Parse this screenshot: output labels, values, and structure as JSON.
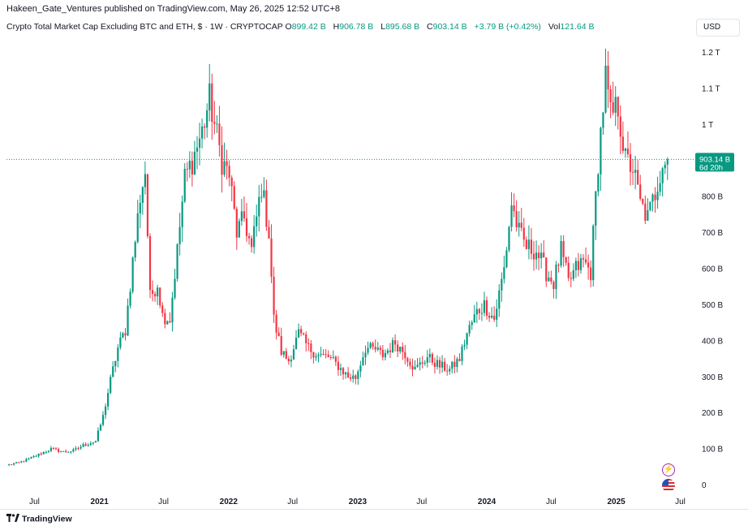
{
  "header": {
    "publisher": "Hakeen_Gate_Ventures published on TradingView.com, May 26, 2025 12:52 UTC+8"
  },
  "legend": {
    "title": "Crypto Total Market Cap Excluding BTC and ETH, $ · 1W · CRYPTOCAP",
    "o_label": "O",
    "o_value": "899.42 B",
    "h_label": "H",
    "h_value": "906.78 B",
    "l_label": "L",
    "l_value": "895.68 B",
    "c_label": "C",
    "c_value": "903.14 B",
    "change": "+3.79 B (+0.42%)",
    "vol_label": "Vol",
    "vol_value": "121.64 B"
  },
  "currency": "USD",
  "price_tag": {
    "price": "903.14 B",
    "countdown": "6d 20h"
  },
  "footer": {
    "brand": "TradingView"
  },
  "icons": [
    "lightning-icon",
    "us-flag-icon",
    "tradingview-logo-icon"
  ],
  "colors": {
    "up": "#089981",
    "down": "#f23645",
    "price_line": "#089981"
  },
  "chart_data": {
    "type": "candlestick",
    "interval": "1W",
    "y_unit": "B USD",
    "ylim": [
      -55,
      1255
    ],
    "y_ticks": [
      {
        "v": 1200,
        "label": "1.2 T"
      },
      {
        "v": 1100,
        "label": "1.1 T"
      },
      {
        "v": 1000,
        "label": "1 T"
      },
      {
        "v": 800,
        "label": "800 B"
      },
      {
        "v": 700,
        "label": "700 B"
      },
      {
        "v": 600,
        "label": "600 B"
      },
      {
        "v": 500,
        "label": "500 B"
      },
      {
        "v": 400,
        "label": "400 B"
      },
      {
        "v": 300,
        "label": "300 B"
      },
      {
        "v": 200,
        "label": "200 B"
      },
      {
        "v": 100,
        "label": "100 B"
      },
      {
        "v": 0,
        "label": "0"
      }
    ],
    "x_ticks": [
      {
        "date": "2020-07-01",
        "label": "Jul"
      },
      {
        "date": "2021-01-01",
        "label": "2021"
      },
      {
        "date": "2021-07-01",
        "label": "Jul"
      },
      {
        "date": "2022-01-01",
        "label": "2022"
      },
      {
        "date": "2022-07-01",
        "label": "Jul"
      },
      {
        "date": "2023-01-01",
        "label": "2023"
      },
      {
        "date": "2023-07-01",
        "label": "Jul"
      },
      {
        "date": "2024-01-01",
        "label": "2024"
      },
      {
        "date": "2024-07-01",
        "label": "Jul"
      },
      {
        "date": "2025-01-01",
        "label": "2025"
      },
      {
        "date": "2025-07-01",
        "label": "Jul"
      }
    ],
    "x_range": [
      "2020-04-13",
      "2025-08-01"
    ],
    "last_close": 903.14,
    "close_anchors": [
      [
        "2020-04-13",
        55
      ],
      [
        "2020-05-18",
        62
      ],
      [
        "2020-06-15",
        72
      ],
      [
        "2020-07-20",
        88
      ],
      [
        "2020-08-17",
        100
      ],
      [
        "2020-09-21",
        92
      ],
      [
        "2020-10-19",
        95
      ],
      [
        "2020-11-16",
        110
      ],
      [
        "2020-12-21",
        122
      ],
      [
        "2021-01-11",
        190
      ],
      [
        "2021-02-01",
        290
      ],
      [
        "2021-02-22",
        380
      ],
      [
        "2021-03-15",
        430
      ],
      [
        "2021-04-05",
        620
      ],
      [
        "2021-04-26",
        800
      ],
      [
        "2021-05-10",
        870
      ],
      [
        "2021-05-24",
        520
      ],
      [
        "2021-06-14",
        560
      ],
      [
        "2021-06-28",
        470
      ],
      [
        "2021-07-19",
        460
      ],
      [
        "2021-08-09",
        650
      ],
      [
        "2021-08-30",
        850
      ],
      [
        "2021-09-20",
        900
      ],
      [
        "2021-10-18",
        980
      ],
      [
        "2021-11-08",
        1070
      ],
      [
        "2021-11-22",
        1000
      ],
      [
        "2021-12-13",
        900
      ],
      [
        "2022-01-03",
        860
      ],
      [
        "2022-01-24",
        700
      ],
      [
        "2022-02-14",
        740
      ],
      [
        "2022-03-07",
        650
      ],
      [
        "2022-04-04",
        830
      ],
      [
        "2022-04-25",
        700
      ],
      [
        "2022-05-09",
        460
      ],
      [
        "2022-05-30",
        370
      ],
      [
        "2022-06-20",
        345
      ],
      [
        "2022-07-18",
        420
      ],
      [
        "2022-08-15",
        380
      ],
      [
        "2022-09-12",
        360
      ],
      [
        "2022-10-10",
        355
      ],
      [
        "2022-11-07",
        330
      ],
      [
        "2022-12-05",
        300
      ],
      [
        "2022-12-26",
        298
      ],
      [
        "2023-01-23",
        380
      ],
      [
        "2023-02-20",
        375
      ],
      [
        "2023-03-13",
        360
      ],
      [
        "2023-04-17",
        395
      ],
      [
        "2023-05-15",
        365
      ],
      [
        "2023-06-12",
        320
      ],
      [
        "2023-07-17",
        355
      ],
      [
        "2023-08-21",
        330
      ],
      [
        "2023-09-18",
        320
      ],
      [
        "2023-10-16",
        350
      ],
      [
        "2023-11-06",
        420
      ],
      [
        "2023-12-04",
        480
      ],
      [
        "2023-12-25",
        500
      ],
      [
        "2024-01-22",
        460
      ],
      [
        "2024-02-19",
        600
      ],
      [
        "2024-03-11",
        780
      ],
      [
        "2024-04-01",
        700
      ],
      [
        "2024-04-22",
        660
      ],
      [
        "2024-05-20",
        650
      ],
      [
        "2024-06-17",
        590
      ],
      [
        "2024-07-08",
        560
      ],
      [
        "2024-07-29",
        650
      ],
      [
        "2024-08-19",
        560
      ],
      [
        "2024-09-09",
        600
      ],
      [
        "2024-09-30",
        620
      ],
      [
        "2024-10-21",
        590
      ],
      [
        "2024-11-11",
        900
      ],
      [
        "2024-12-02",
        1130
      ],
      [
        "2024-12-16",
        1020
      ],
      [
        "2025-01-06",
        1050
      ],
      [
        "2025-01-27",
        900
      ],
      [
        "2025-02-17",
        880
      ],
      [
        "2025-03-10",
        780
      ],
      [
        "2025-03-31",
        740
      ],
      [
        "2025-04-21",
        810
      ],
      [
        "2025-05-12",
        899
      ],
      [
        "2025-05-26",
        903.14
      ]
    ]
  }
}
